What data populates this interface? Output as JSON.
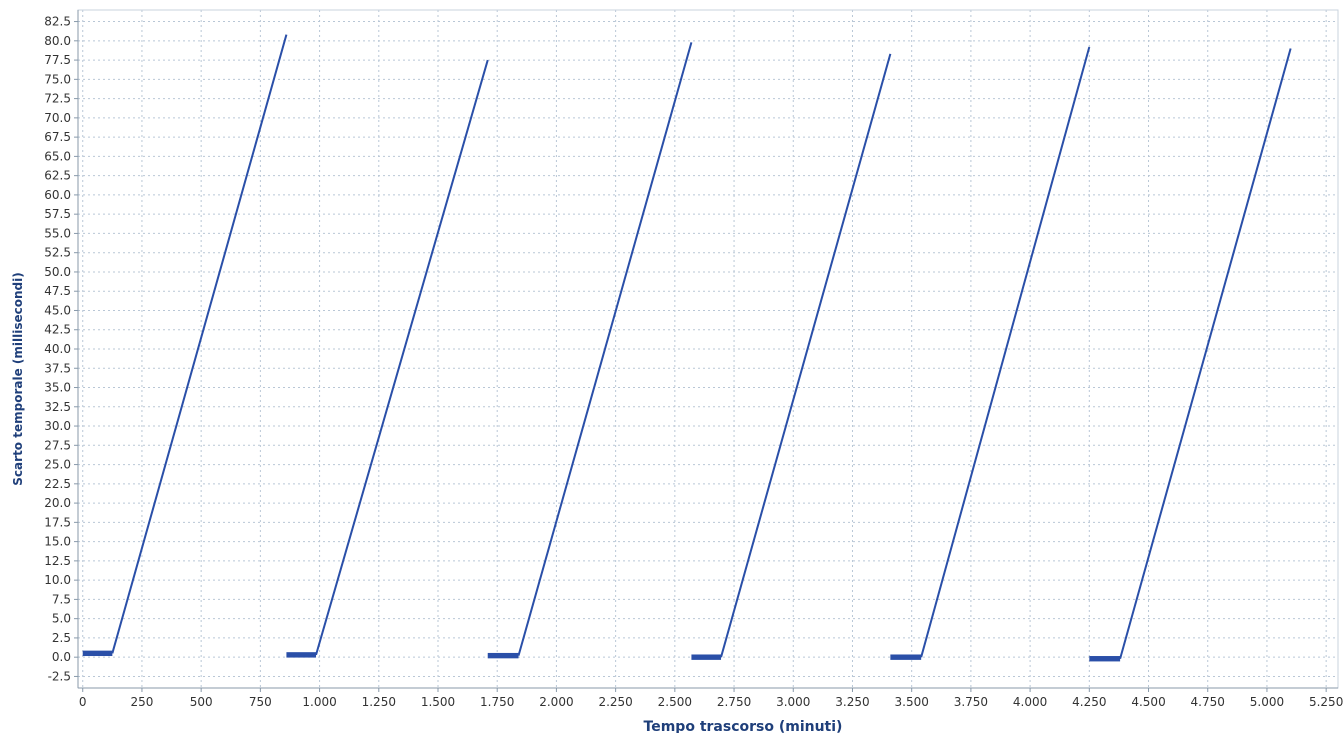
{
  "chart_data": {
    "type": "line",
    "title": "",
    "xlabel": "Tempo trascorso (minuti)",
    "ylabel": "Scarto temporale (millisecondi)",
    "xlim": [
      -20,
      5300
    ],
    "ylim": [
      -4,
      84
    ],
    "x_ticks": [
      0,
      250,
      500,
      750,
      1000,
      1250,
      1500,
      1750,
      2000,
      2250,
      2500,
      2750,
      3000,
      3250,
      3500,
      3750,
      4000,
      4250,
      4500,
      4750,
      5000,
      5250
    ],
    "x_tick_labels": [
      "0",
      "250",
      "500",
      "750",
      "1.000",
      "1.250",
      "1.500",
      "1.750",
      "2.000",
      "2.250",
      "2.500",
      "2.750",
      "3.000",
      "3.250",
      "3.500",
      "3.750",
      "4.000",
      "4.250",
      "4.500",
      "4.750",
      "5.000",
      "5.250"
    ],
    "y_ticks": [
      -2.5,
      0,
      2.5,
      5,
      7.5,
      10,
      12.5,
      15,
      17.5,
      20,
      22.5,
      25,
      27.5,
      30,
      32.5,
      35,
      37.5,
      40,
      42.5,
      45,
      47.5,
      50,
      52.5,
      55,
      57.5,
      60,
      62.5,
      65,
      67.5,
      70,
      72.5,
      75,
      77.5,
      80,
      82.5
    ],
    "y_tick_labels": [
      "-2.5",
      "0.0",
      "2.5",
      "5.0",
      "7.5",
      "10.0",
      "12.5",
      "15.0",
      "17.5",
      "20.0",
      "22.5",
      "25.0",
      "27.5",
      "30.0",
      "32.5",
      "35.0",
      "37.5",
      "40.0",
      "42.5",
      "45.0",
      "47.5",
      "50.0",
      "52.5",
      "55.0",
      "57.5",
      "60.0",
      "62.5",
      "65.0",
      "67.5",
      "70.0",
      "72.5",
      "75.0",
      "77.5",
      "80.0",
      "82.5"
    ],
    "grid": true,
    "legend": "none",
    "series": [
      {
        "color": "#2a4fa8",
        "segments": [
          {
            "flat": [
              0,
              125,
              0.5
            ],
            "ramp": [
              [
                125,
                0.5
              ],
              [
                860,
                80.8
              ]
            ]
          },
          {
            "flat": [
              860,
              985,
              0.3
            ],
            "ramp": [
              [
                985,
                0.3
              ],
              [
                1710,
                77.5
              ]
            ]
          },
          {
            "flat": [
              1710,
              1840,
              0.2
            ],
            "ramp": [
              [
                1840,
                0.2
              ],
              [
                2570,
                79.8
              ]
            ]
          },
          {
            "flat": [
              2570,
              2695,
              0.0
            ],
            "ramp": [
              [
                2695,
                0.0
              ],
              [
                3410,
                78.3
              ]
            ]
          },
          {
            "flat": [
              3410,
              3540,
              0.0
            ],
            "ramp": [
              [
                3540,
                0.0
              ],
              [
                4250,
                79.2
              ]
            ]
          },
          {
            "flat": [
              4250,
              4380,
              -0.2
            ],
            "ramp": [
              [
                4380,
                -0.2
              ],
              [
                5100,
                79.0
              ]
            ]
          }
        ]
      }
    ]
  }
}
